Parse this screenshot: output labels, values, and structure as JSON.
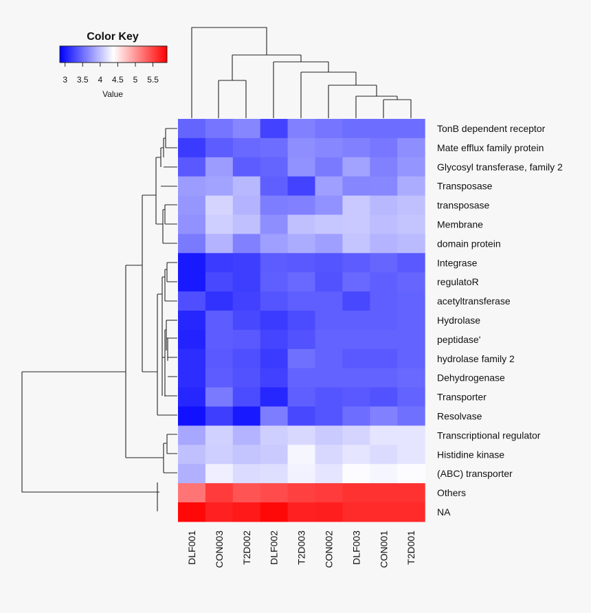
{
  "chart_data": {
    "type": "heatmap",
    "color_key": {
      "title": "Color Key",
      "xlabel": "Value",
      "range": [
        2.85,
        5.9
      ],
      "ticks": [
        "3",
        "3.5",
        "4",
        "4.5",
        "5",
        "5.5"
      ],
      "tick_values": [
        3,
        3.5,
        4,
        4.5,
        5,
        5.5
      ],
      "colors": {
        "low": "#0000ff",
        "mid": "#ffffff",
        "high": "#ff0000"
      }
    },
    "columns": [
      "DLF001",
      "CON003",
      "T2D002",
      "DLF002",
      "T2D003",
      "CON002",
      "DLF003",
      "CON001",
      "T2D001"
    ],
    "rows": [
      "TonB dependent receptor",
      "Mate efflux family protein",
      "Glycosyl transferase, family 2",
      "Transposase",
      "transposase",
      "Membrane",
      "domain protein",
      "Integrase",
      "regulatoR",
      "acetyltransferase",
      "Hydrolase",
      "peptidase'",
      "hydrolase family 2",
      "Dehydrogenase",
      "Transporter",
      "Resolvase",
      "Transcriptional regulator",
      "Histidine kinase",
      "(ABC) transporter",
      "Others",
      "NA"
    ],
    "values": [
      [
        3.45,
        3.55,
        3.65,
        3.25,
        3.62,
        3.55,
        3.5,
        3.5,
        3.5
      ],
      [
        3.2,
        3.4,
        3.48,
        3.5,
        3.7,
        3.66,
        3.62,
        3.56,
        3.7
      ],
      [
        3.38,
        3.78,
        3.4,
        3.45,
        3.72,
        3.58,
        3.82,
        3.62,
        3.74
      ],
      [
        3.78,
        3.82,
        3.95,
        3.42,
        3.25,
        3.8,
        3.65,
        3.66,
        3.88
      ],
      [
        3.75,
        4.12,
        3.92,
        3.6,
        3.62,
        3.72,
        4.05,
        3.95,
        4.0
      ],
      [
        3.72,
        4.08,
        4.0,
        3.7,
        4.0,
        4.04,
        4.05,
        3.98,
        4.02
      ],
      [
        3.58,
        3.92,
        3.62,
        3.8,
        3.88,
        3.8,
        4.02,
        3.92,
        3.96
      ],
      [
        3.0,
        3.2,
        3.22,
        3.4,
        3.38,
        3.36,
        3.4,
        3.46,
        3.38
      ],
      [
        3.0,
        3.28,
        3.22,
        3.42,
        3.48,
        3.34,
        3.48,
        3.42,
        3.46
      ],
      [
        3.32,
        3.15,
        3.24,
        3.36,
        3.42,
        3.42,
        3.28,
        3.42,
        3.44
      ],
      [
        3.08,
        3.4,
        3.28,
        3.2,
        3.3,
        3.42,
        3.42,
        3.42,
        3.44
      ],
      [
        3.06,
        3.4,
        3.38,
        3.26,
        3.34,
        3.44,
        3.44,
        3.44,
        3.44
      ],
      [
        3.12,
        3.38,
        3.32,
        3.2,
        3.52,
        3.44,
        3.38,
        3.38,
        3.44
      ],
      [
        3.12,
        3.4,
        3.34,
        3.24,
        3.44,
        3.44,
        3.44,
        3.44,
        3.48
      ],
      [
        3.08,
        3.58,
        3.3,
        3.08,
        3.42,
        3.36,
        3.38,
        3.34,
        3.44
      ],
      [
        2.95,
        3.22,
        3.0,
        3.6,
        3.28,
        3.36,
        3.5,
        3.62,
        3.52
      ],
      [
        3.85,
        4.1,
        3.92,
        4.08,
        4.14,
        4.06,
        4.12,
        4.22,
        4.22
      ],
      [
        4.0,
        4.08,
        4.02,
        4.06,
        4.32,
        4.14,
        4.22,
        4.16,
        4.22
      ],
      [
        3.9,
        4.28,
        4.16,
        4.18,
        4.3,
        4.22,
        4.36,
        4.32,
        4.36
      ],
      [
        5.2,
        5.55,
        5.4,
        5.45,
        5.52,
        5.55,
        5.6,
        5.6,
        5.6
      ],
      [
        5.85,
        5.7,
        5.75,
        5.85,
        5.7,
        5.72,
        5.65,
        5.65,
        5.65
      ]
    ]
  }
}
